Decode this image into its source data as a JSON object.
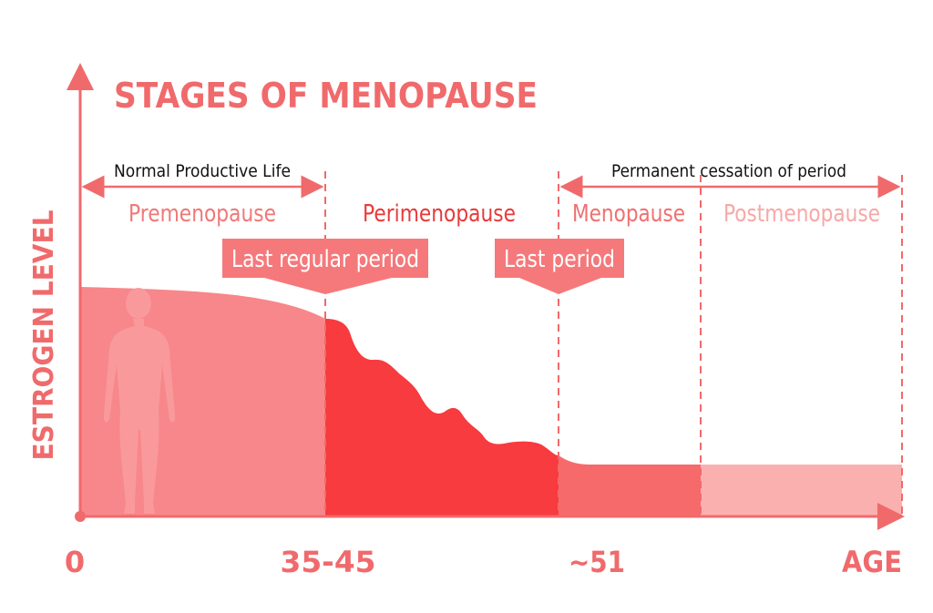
{
  "title": "STAGES OF MENOPAUSE",
  "y_axis_label": "ESTROGEN LEVEL",
  "x_axis": {
    "labels": [
      "0",
      "35-45",
      "~51"
    ],
    "title": "AGE"
  },
  "ranges": [
    {
      "label": "Normal Productive Life"
    },
    {
      "label": "Permanent cessation of period"
    }
  ],
  "stages": [
    "Premenopause",
    "Perimenopause",
    "Menopause",
    "Postmenopause"
  ],
  "callouts": [
    "Last regular period",
    "Last period"
  ]
}
